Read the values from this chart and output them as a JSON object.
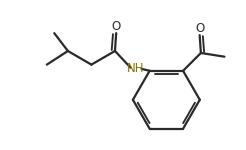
{
  "bg_color": "#ffffff",
  "line_color": "#2a2a2a",
  "line_width": 1.6,
  "nh_color": "#8B7000",
  "o_color": "#2a2a2a",
  "nh_label": "NH",
  "o_label": "O",
  "font_size_nh": 8.5,
  "font_size_o": 8.5,
  "figsize": [
    2.46,
    1.5
  ],
  "dpi": 100
}
